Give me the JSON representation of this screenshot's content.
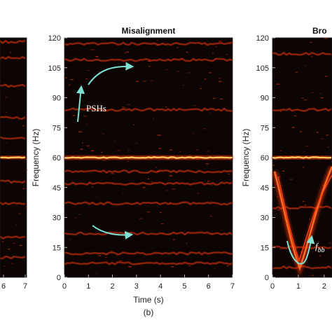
{
  "chart_data": [
    {
      "type": "heatmap",
      "title": "",
      "xlim": [
        0,
        7
      ],
      "ylim": [
        0,
        120
      ],
      "x_ticks": [
        "6",
        "7"
      ],
      "y_ticks": [],
      "xlabel": "",
      "ylabel": "",
      "harmonic_lines_hz": [
        10,
        20,
        37,
        48,
        60,
        70,
        80,
        96,
        110,
        118
      ]
    },
    {
      "type": "heatmap",
      "title": "Misalignment",
      "subtitle": "(b)",
      "xlim": [
        0,
        7
      ],
      "ylim": [
        0,
        120
      ],
      "x_ticks": [
        "0",
        "1",
        "2",
        "3",
        "4",
        "5",
        "6",
        "7"
      ],
      "y_ticks": [
        "0",
        "15",
        "30",
        "45",
        "60",
        "75",
        "90",
        "105",
        "120"
      ],
      "xlabel": "Time (s)",
      "ylabel": "Frequency (Hz)",
      "harmonic_lines_hz": [
        7,
        12,
        22,
        37,
        47,
        53,
        60,
        84,
        109,
        117
      ],
      "annotations": [
        {
          "text": "PSHs",
          "x": 1.6,
          "y": 85
        }
      ]
    },
    {
      "type": "heatmap",
      "title": "Bro",
      "xlim": [
        0,
        2.3
      ],
      "ylim": [
        0,
        120
      ],
      "x_ticks": [
        "0",
        "1",
        "2"
      ],
      "y_ticks": [
        "0",
        "15",
        "30",
        "45",
        "60",
        "75",
        "90",
        "105",
        "120"
      ],
      "xlabel": "",
      "ylabel": "Frequency (Hz)",
      "harmonic_lines_hz": [
        5,
        15,
        35,
        60,
        84,
        112
      ],
      "annotations": [
        {
          "text": "f",
          "subscript": "bb",
          "x": 1.7,
          "y": 16
        }
      ]
    }
  ],
  "colors": {
    "background": "#0c0504",
    "trace": "#ff3a10",
    "trace_strong": "#ffd060",
    "annotation": "#7fe0d4"
  }
}
